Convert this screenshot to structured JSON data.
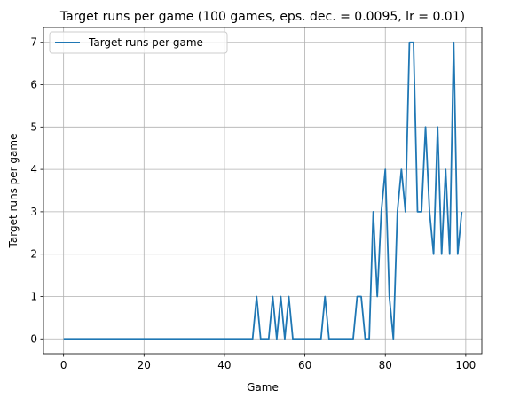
{
  "chart_data": {
    "type": "line",
    "title": "Target runs per game (100 games, eps. dec. = 0.0095, lr = 0.01)",
    "xlabel": "Game",
    "ylabel": "Target runs per game",
    "xlim": [
      -5,
      104
    ],
    "ylim": [
      -0.35,
      7.35
    ],
    "xticks": [
      0,
      20,
      40,
      60,
      80,
      100
    ],
    "yticks": [
      0,
      1,
      2,
      3,
      4,
      5,
      6,
      7
    ],
    "grid": true,
    "legend_position": "upper-left",
    "series": [
      {
        "name": "Target runs per game",
        "color": "#1f77b4",
        "x": [
          0,
          1,
          2,
          3,
          4,
          5,
          6,
          7,
          8,
          9,
          10,
          11,
          12,
          13,
          14,
          15,
          16,
          17,
          18,
          19,
          20,
          21,
          22,
          23,
          24,
          25,
          26,
          27,
          28,
          29,
          30,
          31,
          32,
          33,
          34,
          35,
          36,
          37,
          38,
          39,
          40,
          41,
          42,
          43,
          44,
          45,
          46,
          47,
          48,
          49,
          50,
          51,
          52,
          53,
          54,
          55,
          56,
          57,
          58,
          59,
          60,
          61,
          62,
          63,
          64,
          65,
          66,
          67,
          68,
          69,
          70,
          71,
          72,
          73,
          74,
          75,
          76,
          77,
          78,
          79,
          80,
          81,
          82,
          83,
          84,
          85,
          86,
          87,
          88,
          89,
          90,
          91,
          92,
          93,
          94,
          95,
          96,
          97,
          98,
          99
        ],
        "y": [
          0,
          0,
          0,
          0,
          0,
          0,
          0,
          0,
          0,
          0,
          0,
          0,
          0,
          0,
          0,
          0,
          0,
          0,
          0,
          0,
          0,
          0,
          0,
          0,
          0,
          0,
          0,
          0,
          0,
          0,
          0,
          0,
          0,
          0,
          0,
          0,
          0,
          0,
          0,
          0,
          0,
          0,
          0,
          0,
          0,
          0,
          0,
          0,
          1,
          0,
          0,
          0,
          1,
          0,
          1,
          0,
          1,
          0,
          0,
          0,
          0,
          0,
          0,
          0,
          0,
          1,
          0,
          0,
          0,
          0,
          0,
          0,
          0,
          1,
          1,
          0,
          0,
          3,
          1,
          3,
          4,
          1,
          0,
          3,
          4,
          3,
          7,
          7,
          3,
          3,
          5,
          3,
          2,
          5,
          2,
          4,
          2,
          7,
          2,
          3
        ]
      }
    ]
  }
}
